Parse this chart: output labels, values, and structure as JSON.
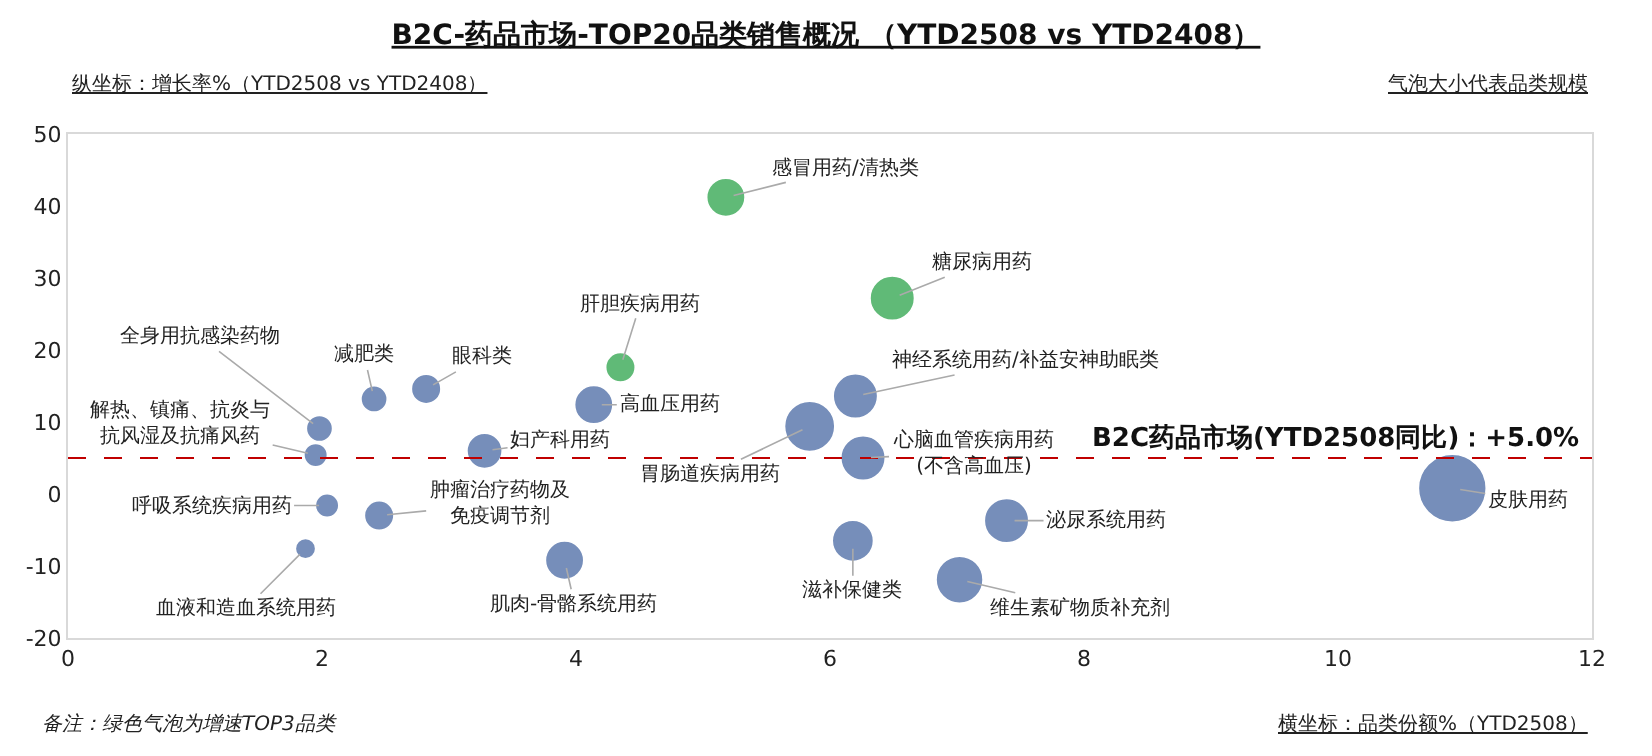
{
  "chart_data": {
    "type": "bubble",
    "title": "B2C-药品市场-TOP20品类销售概况 （YTD2508 vs YTD2408）",
    "ylabel": "纵坐标：增长率%（YTD2508 vs YTD2408）",
    "xlabel": "横坐标：品类份额%（YTD2508）",
    "annotations": [
      "气泡大小代表品类规模",
      "备注：绿色气泡为增速TOP3品类",
      {
        "text": "感冒用药/清热类",
        "x": 5.18,
        "y": 41.2
      },
      {
        "text": "糖尿病用药",
        "x": 6.49,
        "y": 27.2
      },
      {
        "text": "神经系统用药/补益安神助眠类",
        "x": 6.2,
        "y": 13.6
      },
      {
        "text": "胃肠道疾病用药",
        "x": 5.84,
        "y": 9.4
      },
      {
        "text": "心脑血管疾病用药(不含高血压)",
        "x": 6.26,
        "y": 5.0
      },
      {
        "text": "滋补保健类",
        "x": 6.18,
        "y": -6.5
      },
      {
        "text": "泌尿系统用药",
        "x": 7.39,
        "y": -3.7
      },
      {
        "text": "维生素矿物质补充剂",
        "x": 7.02,
        "y": -11.9
      },
      {
        "text": "皮肤用药",
        "x": 10.9,
        "y": 0.8
      },
      {
        "text": "肝胆疾病用药",
        "x": 4.35,
        "y": 17.6
      },
      {
        "text": "高血压用药",
        "x": 4.14,
        "y": 12.4
      },
      {
        "text": "眼科类",
        "x": 2.82,
        "y": 14.6
      },
      {
        "text": "减肥类",
        "x": 2.41,
        "y": 13.2
      },
      {
        "text": "全身用抗感染药物",
        "x": 1.98,
        "y": 9.1
      },
      {
        "text": "解热、镇痛、抗炎与抗风湿及抗痛风药",
        "x": 1.95,
        "y": 5.4
      },
      {
        "text": "妇产科用药",
        "x": 3.28,
        "y": 6.0
      },
      {
        "text": "呼吸系统疾病用药",
        "x": 2.04,
        "y": -1.6
      },
      {
        "text": "肿瘤治疗药物及免疫调节剂",
        "x": 2.45,
        "y": -3.0
      },
      {
        "text": "血液和造血系统用药",
        "x": 1.87,
        "y": -7.6
      },
      {
        "text": "肌肉-骨骼系统用药",
        "x": 3.91,
        "y": -9.2
      }
    ],
    "x": [
      5.18,
      6.49,
      6.2,
      5.84,
      6.26,
      6.18,
      7.39,
      7.02,
      10.9,
      4.35,
      4.14,
      2.82,
      2.41,
      1.98,
      1.95,
      3.28,
      2.04,
      2.45,
      1.87,
      3.91
    ],
    "values": [
      41.2,
      27.2,
      13.6,
      9.4,
      5.0,
      -6.5,
      -3.7,
      -11.9,
      0.8,
      17.6,
      12.4,
      14.6,
      13.2,
      9.1,
      5.4,
      6.0,
      -1.6,
      -3.0,
      -7.6,
      -9.2
    ],
    "sizes": [
      0.32,
      0.43,
      0.43,
      0.55,
      0.43,
      0.37,
      0.43,
      0.48,
      1,
      0.19,
      0.32,
      0.19,
      0.15,
      0.15,
      0.12,
      0.27,
      0.12,
      0.19,
      0.09,
      0.32
    ],
    "colors": [
      "#1e9e3e",
      "#1e9e3e",
      "#3d5f9e",
      "#3d5f9e",
      "#3d5f9e",
      "#3d5f9e",
      "#3d5f9e",
      "#3d5f9e",
      "#3d5f9e",
      "#1e9e3e",
      "#3d5f9e",
      "#3d5f9e",
      "#3d5f9e",
      "#3d5f9e",
      "#3d5f9e",
      "#3d5f9e",
      "#3d5f9e",
      "#3d5f9e",
      "#3d5f9e",
      "#3d5f9e"
    ],
    "xlim": [
      0,
      12
    ],
    "xticks": [
      0,
      2,
      4,
      6,
      8,
      10,
      12
    ],
    "ylim": [
      -20,
      50
    ],
    "yticks": [
      -20,
      -10,
      0,
      10,
      20,
      30,
      40,
      50
    ],
    "ref_lines": [
      {
        "axis": "y",
        "value": 5,
        "label": "B2C药品市场(YTD2508同比)：+5.0%",
        "color": "#c00000",
        "line_style": "dashed"
      }
    ],
    "grid": false,
    "marker": "circle"
  }
}
